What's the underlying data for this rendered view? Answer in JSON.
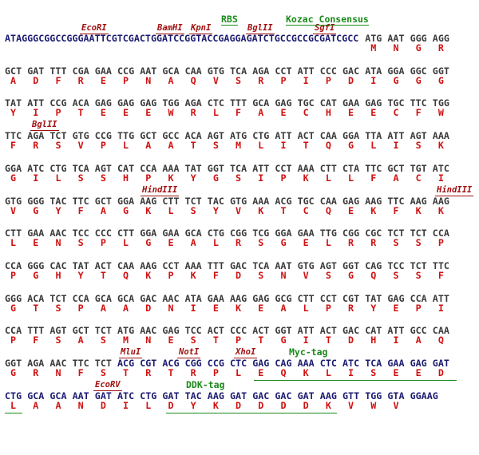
{
  "blocks": [
    {
      "features": [
        "RBS",
        "Kozac Consensus"
      ],
      "enzymes": [
        "EcoRI",
        "BamHI",
        "KpnI",
        "BglII",
        "SgfI"
      ],
      "prefix": "ATAGGGCGGCCGGGAATTCGTCGACTGGATCCGGTACCGAGGAGATCTGCCGCCGCGATCGCC",
      "codons": [
        "ATG",
        "AAT",
        "GGG",
        "AGG"
      ],
      "aa": [
        "M",
        "N",
        "G",
        "R"
      ]
    },
    {
      "features": [],
      "enzymes": [],
      "codons": [
        "GCT",
        "GAT",
        "TTT",
        "CGA",
        "GAA",
        "CCG",
        "AAT",
        "GCA",
        "CAA",
        "GTG",
        "TCA",
        "AGA",
        "CCT",
        "ATT",
        "CCC",
        "GAC",
        "ATA",
        "GGA",
        "GGC",
        "GGT"
      ],
      "aa": [
        "A",
        "D",
        "F",
        "R",
        "E",
        "P",
        "N",
        "A",
        "Q",
        "V",
        "S",
        "R",
        "P",
        "I",
        "P",
        "D",
        "I",
        "G",
        "G",
        "G"
      ]
    },
    {
      "features": [],
      "enzymes": [],
      "codons": [
        "TAT",
        "ATT",
        "CCG",
        "ACA",
        "GAG",
        "GAG",
        "GAG",
        "TGG",
        "AGA",
        "CTC",
        "TTT",
        "GCA",
        "GAG",
        "TGC",
        "CAT",
        "GAA",
        "GAG",
        "TGC",
        "TTC",
        "TGG"
      ],
      "aa": [
        "Y",
        "I",
        "P",
        "T",
        "E",
        "E",
        "E",
        "W",
        "R",
        "L",
        "F",
        "A",
        "E",
        "C",
        "H",
        "E",
        "E",
        "C",
        "F",
        "W"
      ]
    },
    {
      "features": [],
      "enzymes": [
        "BglII"
      ],
      "codons": [
        "TTC",
        "AGA",
        "TCT",
        "GTG",
        "CCG",
        "TTG",
        "GCT",
        "GCC",
        "ACA",
        "AGT",
        "ATG",
        "CTG",
        "ATT",
        "ACT",
        "CAA",
        "GGA",
        "TTA",
        "ATT",
        "AGT",
        "AAA"
      ],
      "aa": [
        "F",
        "R",
        "S",
        "V",
        "P",
        "L",
        "A",
        "A",
        "T",
        "S",
        "M",
        "L",
        "I",
        "T",
        "Q",
        "G",
        "L",
        "I",
        "S",
        "K"
      ]
    },
    {
      "features": [],
      "enzymes": [],
      "codons": [
        "GGA",
        "ATC",
        "CTG",
        "TCA",
        "AGT",
        "CAT",
        "CCA",
        "AAA",
        "TAT",
        "GGT",
        "TCA",
        "ATT",
        "CCT",
        "AAA",
        "CTT",
        "CTA",
        "TTC",
        "GCT",
        "TGT",
        "ATC"
      ],
      "aa": [
        "G",
        "I",
        "L",
        "S",
        "S",
        "H",
        "P",
        "K",
        "Y",
        "G",
        "S",
        "I",
        "P",
        "K",
        "L",
        "L",
        "F",
        "A",
        "C",
        "I"
      ]
    },
    {
      "features": [],
      "enzymes": [
        "HindIII",
        "HindIII"
      ],
      "codons": [
        "GTG",
        "GGG",
        "TAC",
        "TTC",
        "GCT",
        "GGA",
        "AAG",
        "CTT",
        "TCT",
        "TAC",
        "GTG",
        "AAA",
        "ACG",
        "TGC",
        "CAA",
        "GAG",
        "AAG",
        "TTC",
        "AAG",
        "AAG"
      ],
      "aa": [
        "V",
        "G",
        "Y",
        "F",
        "A",
        "G",
        "K",
        "L",
        "S",
        "Y",
        "V",
        "K",
        "T",
        "C",
        "Q",
        "E",
        "K",
        "F",
        "K",
        "K"
      ]
    },
    {
      "features": [],
      "enzymes": [],
      "codons": [
        "CTT",
        "GAA",
        "AAC",
        "TCC",
        "CCC",
        "CTT",
        "GGA",
        "GAA",
        "GCA",
        "CTG",
        "CGG",
        "TCG",
        "GGA",
        "GAA",
        "TTG",
        "CGG",
        "CGC",
        "TCT",
        "TCT",
        "CCA"
      ],
      "aa": [
        "L",
        "E",
        "N",
        "S",
        "P",
        "L",
        "G",
        "E",
        "A",
        "L",
        "R",
        "S",
        "G",
        "E",
        "L",
        "R",
        "R",
        "S",
        "S",
        "P"
      ]
    },
    {
      "features": [],
      "enzymes": [],
      "codons": [
        "CCA",
        "GGG",
        "CAC",
        "TAT",
        "ACT",
        "CAA",
        "AAG",
        "CCT",
        "AAA",
        "TTT",
        "GAC",
        "TCA",
        "AAT",
        "GTG",
        "AGT",
        "GGT",
        "CAG",
        "TCC",
        "TCT",
        "TTC"
      ],
      "aa": [
        "P",
        "G",
        "H",
        "Y",
        "T",
        "Q",
        "K",
        "P",
        "K",
        "F",
        "D",
        "S",
        "N",
        "V",
        "S",
        "G",
        "Q",
        "S",
        "S",
        "F"
      ]
    },
    {
      "features": [],
      "enzymes": [],
      "codons": [
        "GGG",
        "ACA",
        "TCT",
        "CCA",
        "GCA",
        "GCA",
        "GAC",
        "AAC",
        "ATA",
        "GAA",
        "AAG",
        "GAG",
        "GCG",
        "CTT",
        "CCT",
        "CGT",
        "TAT",
        "GAG",
        "CCA",
        "ATT"
      ],
      "aa": [
        "G",
        "T",
        "S",
        "P",
        "A",
        "A",
        "D",
        "N",
        "I",
        "E",
        "K",
        "E",
        "A",
        "L",
        "P",
        "R",
        "Y",
        "E",
        "P",
        "I"
      ]
    },
    {
      "features": [],
      "enzymes": [],
      "codons": [
        "CCA",
        "TTT",
        "AGT",
        "GCT",
        "TCT",
        "ATG",
        "AAC",
        "GAG",
        "TCC",
        "ACT",
        "CCC",
        "ACT",
        "GGT",
        "ATT",
        "ACT",
        "GAC",
        "CAT",
        "ATT",
        "GCC",
        "CAA"
      ],
      "aa": [
        "P",
        "F",
        "S",
        "A",
        "S",
        "M",
        "N",
        "E",
        "S",
        "T",
        "P",
        "T",
        "G",
        "I",
        "T",
        "D",
        "H",
        "I",
        "A",
        "Q"
      ]
    },
    {
      "features": [
        "Myc-tag"
      ],
      "enzymes": [
        "MluI",
        "NotI",
        "XhoI"
      ],
      "codons": [
        "GGT",
        "AGA",
        "AAC",
        "TTC",
        "TCT",
        "ACG",
        "CGT",
        "ACG",
        "CGG",
        "CCG",
        "CTC",
        "GAG",
        "CAG",
        "AAA",
        "CTC",
        "ATC",
        "TCA",
        "GAA",
        "GAG",
        "GAT"
      ],
      "aa": [
        "G",
        "R",
        "N",
        "F",
        "S",
        "T",
        "R",
        "T",
        "R",
        "P",
        "L",
        "E",
        "Q",
        "K",
        "L",
        "I",
        "S",
        "E",
        "E",
        "D"
      ]
    },
    {
      "features": [
        "DDK-tag"
      ],
      "enzymes": [
        "EcoRV"
      ],
      "codons": [
        "CTG",
        "GCA",
        "GCA",
        "AAT",
        "GAT",
        "ATC",
        "CTG",
        "GAT",
        "TAC",
        "AAG",
        "GAT",
        "GAC",
        "GAC",
        "GAT",
        "AAG",
        "GTT",
        "TGG",
        "GTA"
      ],
      "aa": [
        "L",
        "A",
        "A",
        "N",
        "D",
        "I",
        "L",
        "D",
        "Y",
        "K",
        "D",
        "D",
        "D",
        "D",
        "K",
        "V",
        "W",
        "V"
      ],
      "tail": "GGAAG"
    }
  ]
}
